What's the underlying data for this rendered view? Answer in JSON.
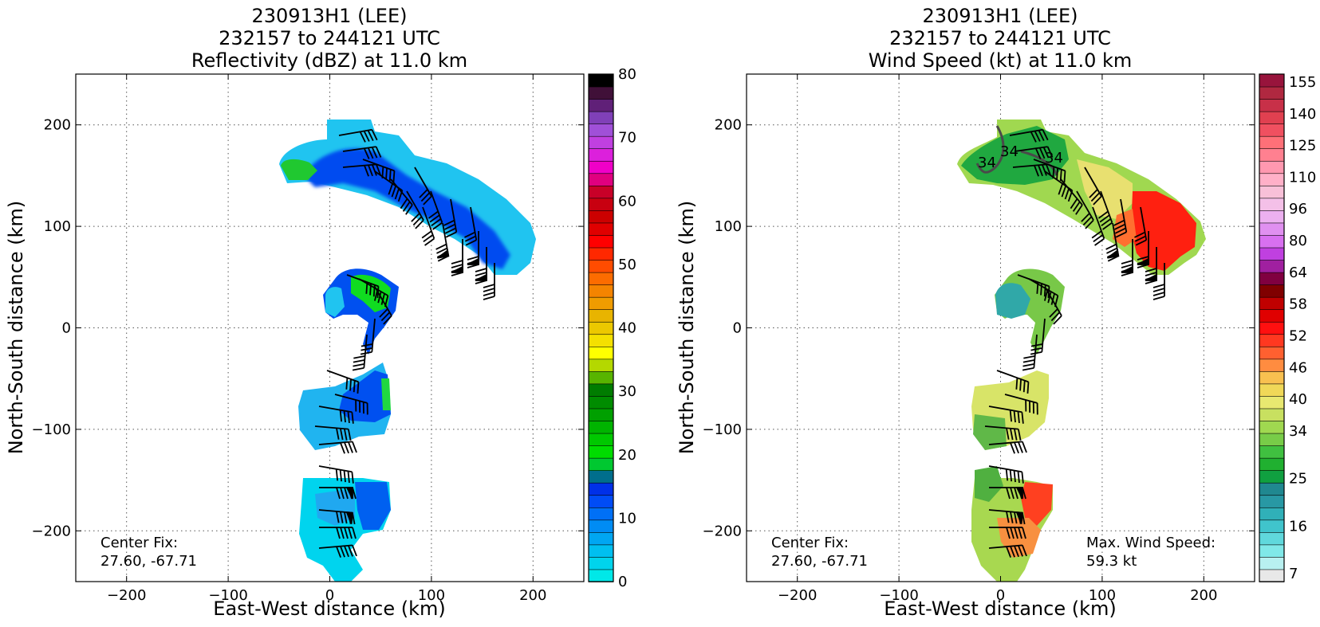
{
  "panels": [
    {
      "title": [
        "230913H1 (LEE)",
        "232157 to 244121 UTC",
        "Reflectivity (dBZ) at 11.0 km"
      ],
      "xlabel": "East-West distance (km)",
      "ylabel": "North-South distance (km)",
      "center_fix": [
        "Center Fix:",
        "27.60, -67.71"
      ],
      "xticks": [
        "−200",
        "−100",
        "0",
        "100",
        "200"
      ],
      "yticks": [
        "200",
        "100",
        "0",
        "−100",
        "−200"
      ],
      "colorbar": {
        "ticks": [
          "0",
          "10",
          "20",
          "30",
          "40",
          "50",
          "60",
          "70",
          "80"
        ],
        "colors": [
          "#00e8e8",
          "#00d4ec",
          "#00bff0",
          "#00a6f2",
          "#008cf4",
          "#0070f6",
          "#004cf6",
          "#0030e8",
          "#006e8c",
          "#00c830",
          "#00dc00",
          "#00c800",
          "#00b400",
          "#00a000",
          "#008c00",
          "#007c00",
          "#58b400",
          "#b4d800",
          "#ffff00",
          "#f4e000",
          "#ecc800",
          "#e8b400",
          "#f09c00",
          "#f48400",
          "#fc6c00",
          "#ff4c00",
          "#ff2800",
          "#ff0000",
          "#e00000",
          "#cc0000",
          "#c80010",
          "#c80028",
          "#e00080",
          "#f000c8",
          "#dc20dc",
          "#c040e0",
          "#a050d8",
          "#8040b8",
          "#602078",
          "#401038",
          "#000000"
        ]
      }
    },
    {
      "title": [
        "230913H1 (LEE)",
        "232157 to 244121 UTC",
        "Wind Speed (kt) at 11.0 km"
      ],
      "xlabel": "East-West distance (km)",
      "ylabel": "North-South distance (km)",
      "center_fix": [
        "Center Fix:",
        "27.60, -67.71"
      ],
      "max_wind": [
        "Max. Wind Speed:",
        "59.3 kt"
      ],
      "contour_label": "34",
      "xticks": [
        "−200",
        "−100",
        "0",
        "100",
        "200"
      ],
      "yticks": [
        "200",
        "100",
        "0",
        "−100",
        "−200"
      ],
      "colorbar": {
        "ticks": [
          "7",
          "16",
          "25",
          "34",
          "40",
          "46",
          "52",
          "58",
          "64",
          "80",
          "96",
          "110",
          "125",
          "140",
          "155"
        ],
        "colors": [
          "#e8e8e8",
          "#b8f0f0",
          "#80e8e8",
          "#60d8dc",
          "#40c4cc",
          "#30b0b8",
          "#2898a4",
          "#208890",
          "#10a040",
          "#20b030",
          "#40c040",
          "#78cc48",
          "#a0d850",
          "#c8e060",
          "#e8e870",
          "#f0d858",
          "#f8c050",
          "#ff8c40",
          "#ff6030",
          "#ff3820",
          "#ff1010",
          "#e00000",
          "#c00000",
          "#800000",
          "#800040",
          "#a020a0",
          "#c040e0",
          "#d870f0",
          "#e090f0",
          "#ecb0f0",
          "#f4c0e8",
          "#f8c0d8",
          "#ffb0c8",
          "#ff98b0",
          "#ff8090",
          "#ff7078",
          "#f05060",
          "#e04050",
          "#c83048",
          "#b02840",
          "#98143c"
        ]
      }
    }
  ],
  "chart_data": [
    {
      "type": "heatmap",
      "title": "230913H1 (LEE) 232157 to 244121 UTC Reflectivity (dBZ) at 11.0 km",
      "xlabel": "East-West distance (km)",
      "ylabel": "North-South distance (km)",
      "xlim": [
        -250,
        250
      ],
      "ylim": [
        -250,
        250
      ],
      "grid": true,
      "colorbar_range": [
        0,
        80
      ],
      "colorbar_label": "Reflectivity (dBZ)",
      "annotations": [
        "Center Fix: 27.60, -67.71"
      ]
    },
    {
      "type": "heatmap",
      "title": "230913H1 (LEE) 232157 to 244121 UTC Wind Speed (kt) at 11.0 km",
      "xlabel": "East-West distance (km)",
      "ylabel": "North-South distance (km)",
      "xlim": [
        -250,
        250
      ],
      "ylim": [
        -250,
        250
      ],
      "grid": true,
      "colorbar_ticks": [
        7,
        16,
        25,
        34,
        40,
        46,
        52,
        58,
        64,
        80,
        96,
        110,
        125,
        140,
        155
      ],
      "colorbar_label": "Wind Speed (kt)",
      "max_wind_speed_kt": 59.3,
      "annotations": [
        "Center Fix: 27.60, -67.71",
        "Max. Wind Speed: 59.3 kt"
      ]
    }
  ]
}
